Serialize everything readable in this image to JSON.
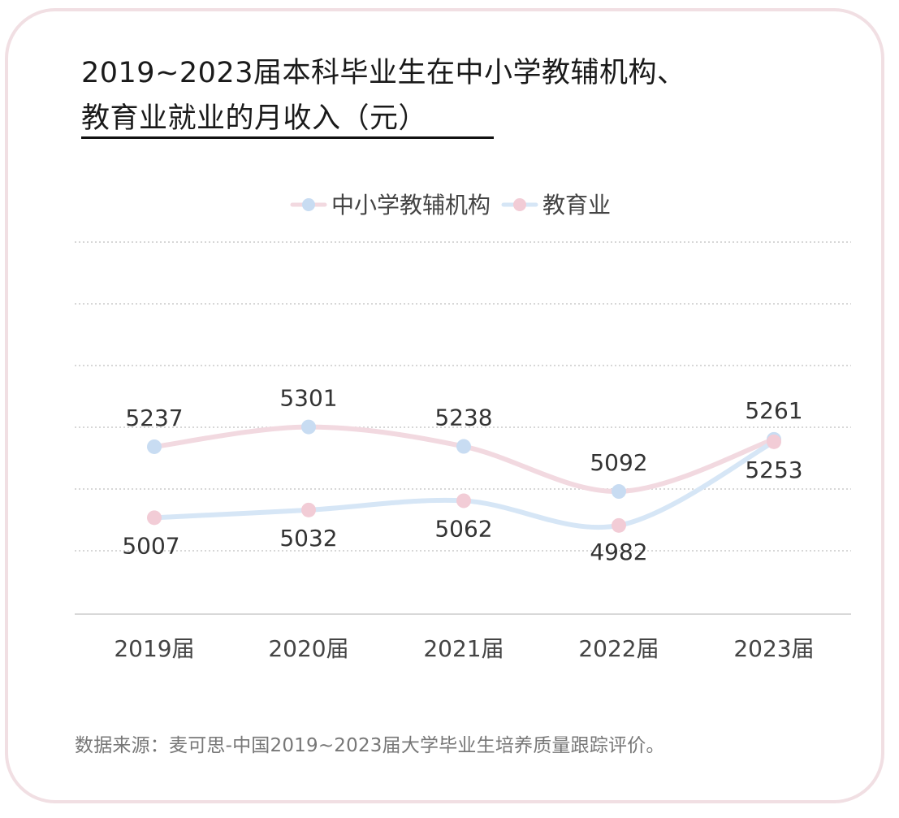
{
  "title": {
    "line1": "2019~2023届本科毕业生在中小学教辅机构、",
    "line2": "教育业就业的月收入（元）"
  },
  "source": "数据来源：麦可思-中国2019~2023届大学毕业生培养质量跟踪评价。",
  "chart_data": {
    "type": "line",
    "categories": [
      "2019届",
      "2020届",
      "2021届",
      "2022届",
      "2023届"
    ],
    "series": [
      {
        "name": "中小学教辅机构",
        "values": [
          5237,
          5301,
          5238,
          5092,
          5261
        ],
        "line_color": "#f2d9e0",
        "marker_color": "#c8dcf2"
      },
      {
        "name": "教育业",
        "values": [
          5007,
          5032,
          5062,
          4982,
          5253
        ],
        "line_color": "#d6e6f6",
        "marker_color": "#f2ccd6"
      }
    ],
    "grid": true,
    "legend": "top-center",
    "smooth": true
  }
}
